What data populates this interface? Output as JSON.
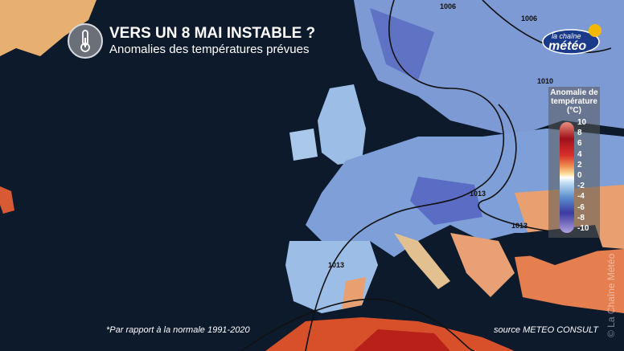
{
  "header": {
    "title": "VERS UN 8 MAI INSTABLE ?",
    "subtitle": "Anomalies des températures prévues",
    "icon": "thermometer-icon"
  },
  "logo": {
    "line1": "la chaîne",
    "line2": "météo"
  },
  "legend": {
    "title": "Anomalie de température (°C)",
    "ticks": [
      "10",
      "8",
      "6",
      "4",
      "2",
      "0",
      "-2",
      "-4",
      "-6",
      "-8",
      "-10"
    ],
    "range": [
      -10,
      10
    ],
    "colors": {
      "warm": "#a0101a",
      "neutral": "#ffffff",
      "cold": "#3a3aa0"
    }
  },
  "isobars": [
    "1006",
    "1006",
    "1010",
    "1013",
    "1013",
    "1013"
  ],
  "footer": {
    "note": "*Par rapport à la normale 1991-2020",
    "source": "source METEO CONSULT"
  },
  "watermark": "© La Chaîne Météo"
}
